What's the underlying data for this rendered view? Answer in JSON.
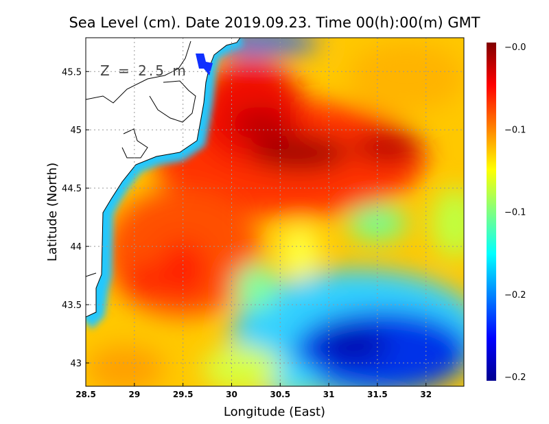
{
  "chart_data": {
    "type": "heatmap",
    "title": "Sea Level (cm). Date 2019.09.23. Time 00(h):00(m) GMT",
    "xlabel": "Longitude (East)",
    "ylabel": "Latitude (North)",
    "annotation": "Z = 2.5 m",
    "xlim": [
      28.5,
      32.39
    ],
    "ylim": [
      42.8,
      45.79
    ],
    "xticks": [
      "28.5",
      "29",
      "29.5",
      "30",
      "30.5",
      "31",
      "31.5",
      "32"
    ],
    "yticks": [
      "43",
      "43.5",
      "44",
      "44.5",
      "45",
      "45.5"
    ],
    "grid": true,
    "colormap": "jet",
    "colorbar_ticks": [
      "-0.0",
      "-0.1",
      "-0.1",
      "-0.2",
      "-0.2"
    ],
    "base_color": "#ffc800",
    "features": [
      {
        "lon": 31.3,
        "lat": 43.25,
        "rx": 1.3,
        "ry": 0.55,
        "color": "#30d0ff"
      },
      {
        "lon": 31.55,
        "lat": 43.1,
        "rx": 0.9,
        "ry": 0.35,
        "color": "#0030e8"
      },
      {
        "lon": 31.25,
        "lat": 43.15,
        "rx": 0.35,
        "ry": 0.15,
        "color": "#0010b0"
      },
      {
        "lon": 30.6,
        "lat": 42.85,
        "rx": 0.3,
        "ry": 0.15,
        "color": "#40e0ff"
      },
      {
        "lon": 30.1,
        "lat": 42.95,
        "rx": 0.4,
        "ry": 0.2,
        "color": "#d8ff40"
      },
      {
        "lon": 28.9,
        "lat": 42.95,
        "rx": 0.4,
        "ry": 0.2,
        "color": "#ffa000"
      },
      {
        "lon": 30.6,
        "lat": 44.75,
        "rx": 1.4,
        "ry": 0.5,
        "color": "#ff3000"
      },
      {
        "lon": 30.2,
        "lat": 45.15,
        "rx": 0.55,
        "ry": 0.45,
        "color": "#f01000"
      },
      {
        "lon": 29.5,
        "lat": 43.95,
        "rx": 0.8,
        "ry": 0.55,
        "color": "#ff5000"
      },
      {
        "lon": 29.1,
        "lat": 43.7,
        "rx": 0.2,
        "ry": 0.15,
        "color": "#ff2800"
      },
      {
        "lon": 29.5,
        "lat": 43.8,
        "rx": 0.25,
        "ry": 0.25,
        "color": "#ff2000"
      },
      {
        "lon": 30.7,
        "lat": 44.8,
        "rx": 0.5,
        "ry": 0.15,
        "color": "#a00000"
      },
      {
        "lon": 30.3,
        "lat": 45.05,
        "rx": 0.3,
        "ry": 0.15,
        "color": "#c00000"
      },
      {
        "lon": 31.6,
        "lat": 44.85,
        "rx": 0.35,
        "ry": 0.13,
        "color": "#b80000"
      },
      {
        "lon": 30.25,
        "lat": 43.65,
        "rx": 0.22,
        "ry": 0.2,
        "color": "#80ffa0"
      },
      {
        "lon": 30.7,
        "lat": 43.95,
        "rx": 0.2,
        "ry": 0.25,
        "color": "#ffff40"
      },
      {
        "lon": 31.5,
        "lat": 44.2,
        "rx": 0.3,
        "ry": 0.15,
        "color": "#70ff90"
      },
      {
        "lon": 32.3,
        "lat": 44.2,
        "rx": 0.25,
        "ry": 0.3,
        "color": "#c0ff40"
      },
      {
        "lon": 31.8,
        "lat": 45.45,
        "rx": 0.6,
        "ry": 0.3,
        "color": "#ffb400"
      },
      {
        "lon": 30.3,
        "lat": 45.75,
        "rx": 0.6,
        "ry": 0.1,
        "color": "#2060ff"
      }
    ]
  }
}
